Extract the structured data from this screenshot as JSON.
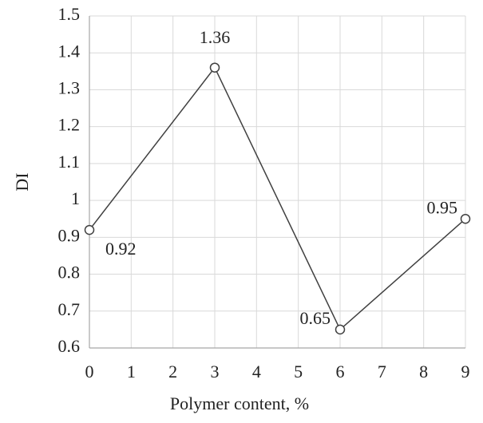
{
  "chart_data": {
    "type": "line",
    "x_label": "Polymer content, %",
    "y_label": "DI",
    "x": [
      0,
      3,
      6,
      9
    ],
    "values": [
      0.92,
      1.36,
      0.65,
      0.95
    ],
    "color": "#404040",
    "xlim": [
      0,
      9
    ],
    "xticks": [
      0,
      1,
      2,
      3,
      4,
      5,
      6,
      7,
      8,
      9
    ],
    "ylim": [
      0.6,
      1.5
    ],
    "yticks": [
      0.6,
      0.7,
      0.8,
      0.9,
      1,
      1.1,
      1.2,
      1.3,
      1.4,
      1.5
    ],
    "grid": true
  }
}
